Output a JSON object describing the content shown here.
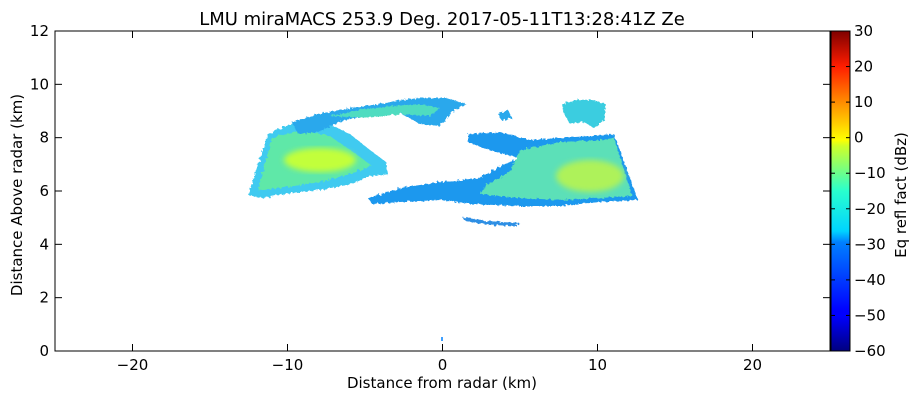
{
  "chart_data": {
    "type": "heatmap",
    "title": "LMU miraMACS 253.9 Deg. 2017-05-11T13:28:41Z  Ze",
    "xlabel": "Distance from radar (km)",
    "ylabel": "Distance Above radar  (km)",
    "xlim": [
      -25,
      25
    ],
    "ylim": [
      0,
      12
    ],
    "x_ticks": [
      -20,
      -10,
      0,
      10,
      20
    ],
    "x_tick_labels": [
      "−20",
      "−10",
      "0",
      "10",
      "20"
    ],
    "y_ticks": [
      0,
      2,
      4,
      6,
      8,
      10,
      12
    ],
    "y_tick_labels": [
      "0",
      "2",
      "4",
      "6",
      "8",
      "10",
      "12"
    ],
    "colorbar": {
      "label": "Eq refl fact (dBz)",
      "range": [
        -60,
        30
      ],
      "ticks": [
        -60,
        -50,
        -40,
        -30,
        -20,
        -10,
        0,
        10,
        20,
        30
      ],
      "tick_labels": [
        "−60",
        "−50",
        "−40",
        "−30",
        "−20",
        "−10",
        "0",
        "10",
        "20",
        "30"
      ],
      "colormap": "jet"
    },
    "grid": false,
    "echo_regions": [
      {
        "name": "left-cloud-layer",
        "x_range": [
          -12.4,
          -3.6
        ],
        "y_range": [
          5.6,
          8.2
        ],
        "dbz": -13
      },
      {
        "name": "left-cloud-core",
        "x_range": [
          -11,
          -6
        ],
        "y_range": [
          6.6,
          7.6
        ],
        "dbz": -6
      },
      {
        "name": "upper-cloud-band",
        "x_range": [
          -9.5,
          1.8
        ],
        "y_range": [
          8.2,
          9.7
        ],
        "dbz": -25
      },
      {
        "name": "right-upper-cell",
        "x_range": [
          7.9,
          10.6
        ],
        "y_range": [
          8.4,
          9.4
        ],
        "dbz": -25
      },
      {
        "name": "main-layer",
        "x_range": [
          -4.6,
          12.6
        ],
        "y_range": [
          5.4,
          8.2
        ],
        "dbz": -18
      },
      {
        "name": "right-layer-core",
        "x_range": [
          6,
          12.3
        ],
        "y_range": [
          5.9,
          7.7
        ],
        "dbz": -12
      },
      {
        "name": "lower-fragment",
        "x_range": [
          1.3,
          5.1
        ],
        "y_range": [
          4.7,
          5.0
        ],
        "dbz": -35
      },
      {
        "name": "surface-echo",
        "x_range": [
          -0.1,
          0.1
        ],
        "y_range": [
          0.35,
          0.5
        ],
        "dbz": -30
      }
    ]
  }
}
